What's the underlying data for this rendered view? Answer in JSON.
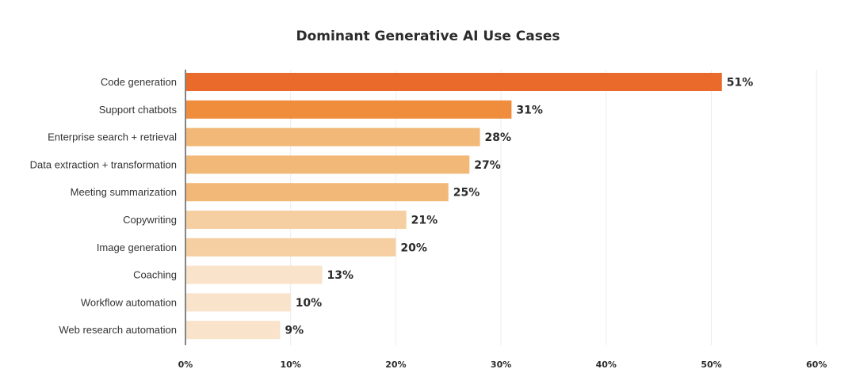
{
  "chart_data": {
    "type": "bar",
    "orientation": "horizontal",
    "title": "Dominant Generative AI Use Cases",
    "xlabel": "",
    "ylabel": "",
    "categories": [
      "Code generation",
      "Support chatbots",
      "Enterprise search + retrieval",
      "Data extraction + transformation",
      "Meeting summarization",
      "Copywriting",
      "Image generation",
      "Coaching",
      "Workflow automation",
      "Web research automation"
    ],
    "values": [
      51,
      31,
      28,
      27,
      25,
      21,
      20,
      13,
      10,
      9
    ],
    "value_labels": [
      "51%",
      "31%",
      "28%",
      "27%",
      "25%",
      "21%",
      "20%",
      "13%",
      "10%",
      "9%"
    ],
    "bar_colors": [
      "#e96a2a",
      "#ef8d3c",
      "#f2b878",
      "#f2b878",
      "#f2b878",
      "#f5cfa2",
      "#f5cfa2",
      "#f9e3ca",
      "#f9e3ca",
      "#f9e3ca"
    ],
    "xlim": [
      0,
      60
    ],
    "x_ticks": [
      0,
      10,
      20,
      30,
      40,
      50,
      60
    ],
    "x_tick_labels": [
      "0%",
      "10%",
      "20%",
      "30%",
      "40%",
      "50%",
      "60%"
    ],
    "grid": "vertical",
    "legend": "none"
  }
}
